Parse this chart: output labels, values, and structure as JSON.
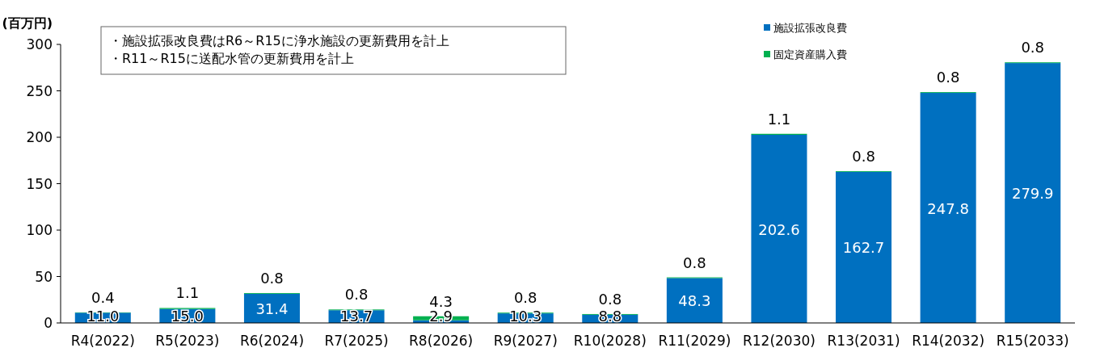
{
  "chart_data": {
    "type": "bar",
    "stacked": true,
    "ylabel": "(百万円)",
    "legend": "top right",
    "annotations": [
      "・施設拡張改良費はR6～R15に浄水施設の更新費用を計上",
      "・R11～R15に送配水管の更新費用を計上"
    ],
    "categories": [
      "R4(2022)",
      "R5(2023)",
      "R6(2024)",
      "R7(2025)",
      "R8(2026)",
      "R9(2027)",
      "R10(2028)",
      "R11(2029)",
      "R12(2030)",
      "R13(2031)",
      "R14(2032)",
      "R15(2033)"
    ],
    "ylim": [
      0,
      300
    ],
    "yticks": [
      0,
      50,
      100,
      150,
      200,
      250,
      300
    ],
    "series": [
      {
        "name": "施設拡張改良費",
        "color": "#0070c0",
        "values": [
          11.0,
          15.0,
          31.4,
          13.7,
          2.9,
          10.3,
          8.8,
          48.3,
          202.6,
          162.7,
          247.8,
          279.9
        ],
        "value_labels": [
          "11.0",
          "15.0",
          "31.4",
          "13.7",
          "2.9",
          "10.3",
          "8.8",
          "48.3",
          "202.6",
          "162.7",
          "247.8",
          "279.9"
        ]
      },
      {
        "name": "固定資産購入費",
        "color": "#00b050",
        "values": [
          0.4,
          1.1,
          0.8,
          0.8,
          4.3,
          0.8,
          0.8,
          0.8,
          1.1,
          0.8,
          0.8,
          0.8
        ],
        "value_labels": [
          "0.4",
          "1.1",
          "0.8",
          "0.8",
          "4.3",
          "0.8",
          "0.8",
          "0.8",
          "1.1",
          "0.8",
          "0.8",
          "0.8"
        ]
      }
    ]
  }
}
